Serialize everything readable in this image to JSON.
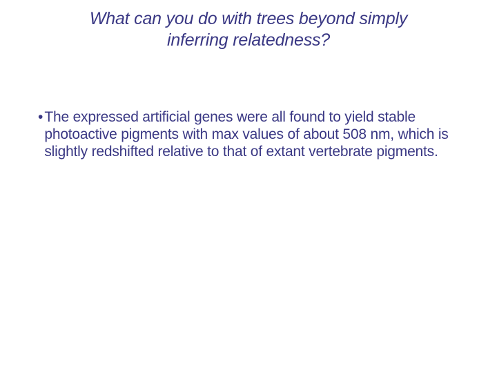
{
  "slide": {
    "title": "What can you do with trees beyond simply inferring relatedness?",
    "bullets": [
      {
        "text": "The expressed artificial genes were all found to yield stable photoactive pigments with max values of about 508 nm, which is slightly redshifted relative to that of extant vertebrate pigments."
      }
    ]
  },
  "style": {
    "title_color": "#3a3884",
    "body_color": "#3a3884",
    "background_color": "#ffffff",
    "title_fontsize": 25,
    "body_fontsize": 21,
    "title_style": "italic"
  }
}
